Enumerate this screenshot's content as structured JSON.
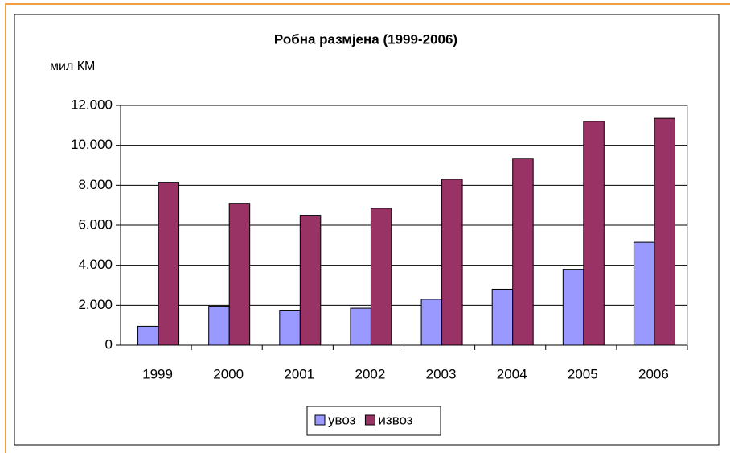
{
  "chart_data": {
    "type": "bar",
    "title": "Робна размјена  (1999-2006)",
    "y_label": "мил КМ",
    "categories": [
      "1999",
      "2000",
      "2001",
      "2002",
      "2003",
      "2004",
      "2005",
      "2006"
    ],
    "series": [
      {
        "name": "увоз",
        "color": "#9999ff",
        "values": [
          950,
          1950,
          1750,
          1850,
          2300,
          2800,
          3800,
          5150
        ]
      },
      {
        "name": "извоз",
        "color": "#993366",
        "values": [
          8150,
          7100,
          6500,
          6850,
          8300,
          9350,
          11200,
          11350
        ]
      }
    ],
    "ylim": [
      0,
      12000
    ],
    "yticks": [
      0,
      {
        "value": 2000,
        "label": "2.000"
      },
      {
        "value": 4000,
        "label": "4.000"
      },
      {
        "value": 6000,
        "label": "6.000"
      },
      {
        "value": 8000,
        "label": "8.000"
      },
      {
        "value": 10000,
        "label": "10.000"
      },
      {
        "value": 12000,
        "label": "12.000"
      }
    ],
    "grid": true,
    "legend": "bottom"
  }
}
